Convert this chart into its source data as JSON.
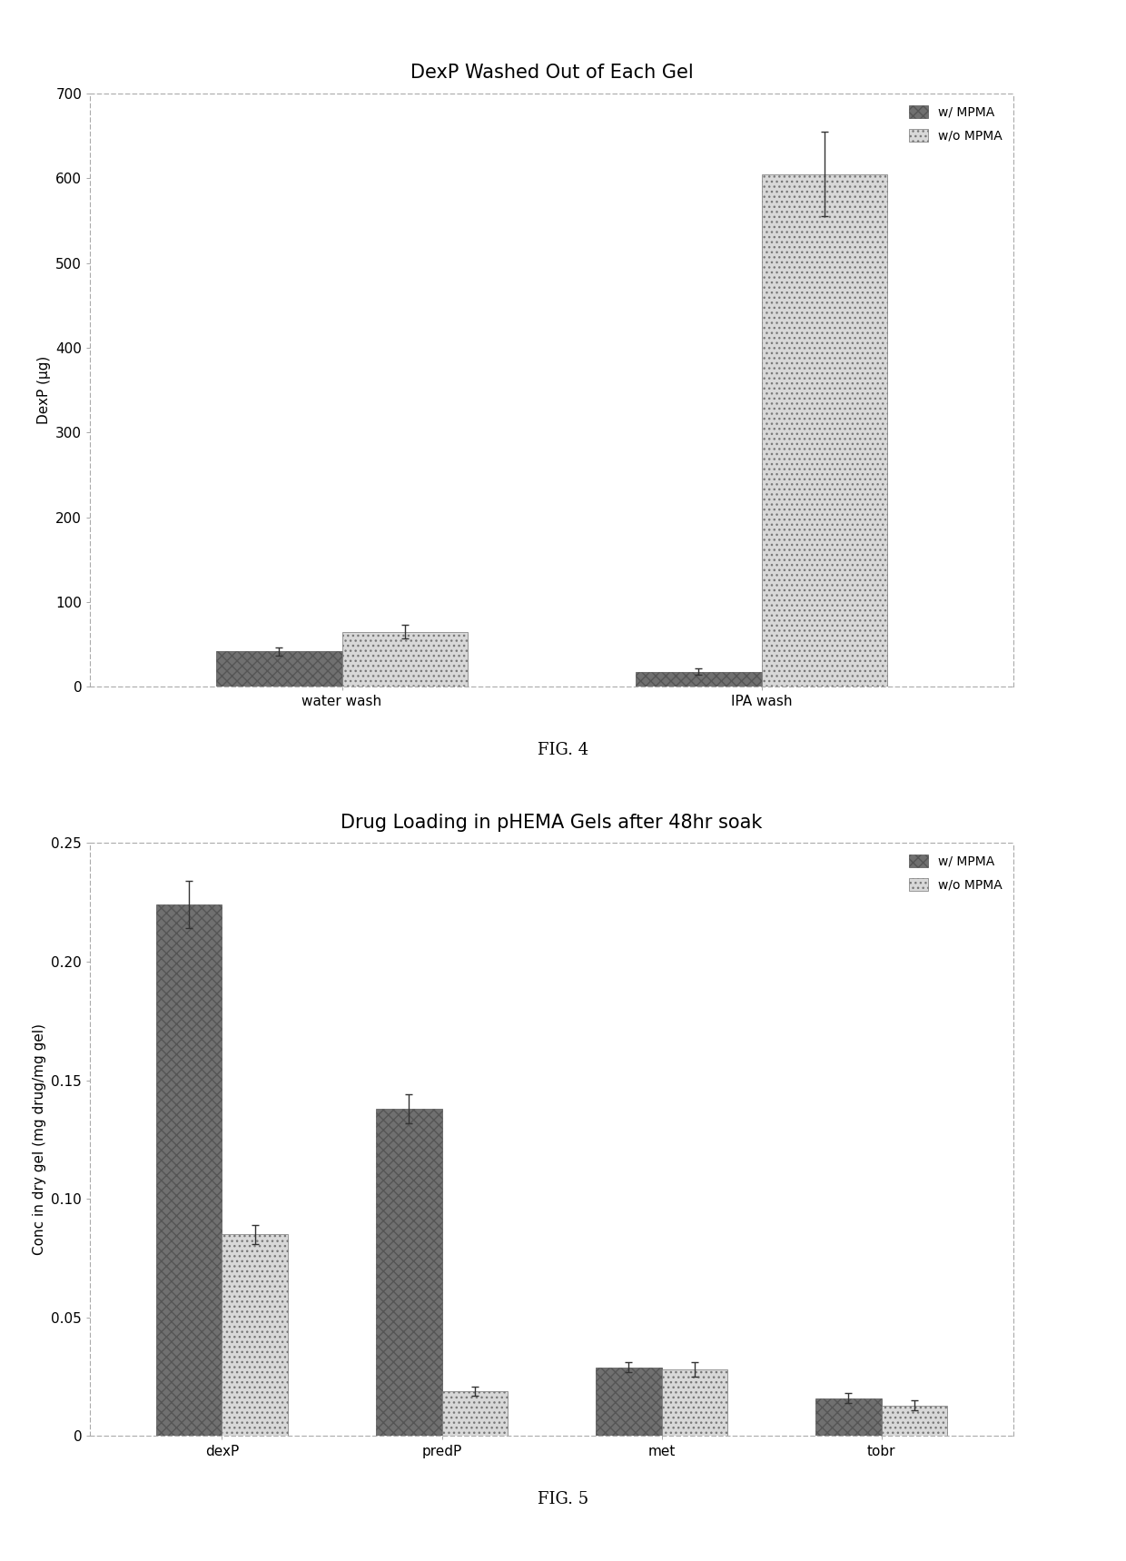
{
  "fig4": {
    "title": "DexP Washed Out of Each Gel",
    "ylabel": "DexP (μg)",
    "ylim": [
      0,
      700
    ],
    "yticks": [
      0,
      100,
      200,
      300,
      400,
      500,
      600,
      700
    ],
    "categories": [
      "water wash",
      "IPA wash"
    ],
    "with_mpma": [
      42,
      18
    ],
    "without_mpma": [
      65,
      605
    ],
    "with_mpma_err": [
      5,
      4
    ],
    "without_mpma_err": [
      8,
      50
    ],
    "color_with": "#707070",
    "color_without": "#d8d8d8",
    "hatch_with": "xxx",
    "hatch_without": "...",
    "legend_labels": [
      "w/ MPMA",
      "w/o MPMA"
    ],
    "bar_width": 0.3
  },
  "fig5": {
    "title": "Drug Loading in pHEMA Gels after 48hr soak",
    "ylabel": "Conc in dry gel (mg drug/mg gel)",
    "ylim": [
      0,
      0.25
    ],
    "yticks": [
      0,
      0.05,
      0.1,
      0.15,
      0.2,
      0.25
    ],
    "categories": [
      "dexP",
      "predP",
      "met",
      "tobr"
    ],
    "with_mpma": [
      0.224,
      0.138,
      0.029,
      0.016
    ],
    "without_mpma": [
      0.085,
      0.019,
      0.028,
      0.013
    ],
    "with_mpma_err": [
      0.01,
      0.006,
      0.002,
      0.002
    ],
    "without_mpma_err": [
      0.004,
      0.002,
      0.003,
      0.002
    ],
    "color_with": "#707070",
    "color_without": "#d8d8d8",
    "hatch_with": "xxx",
    "hatch_without": "...",
    "legend_labels": [
      "w/ MPMA",
      "w/o MPMA"
    ],
    "bar_width": 0.3
  },
  "background_color": "#ffffff",
  "plot_bg_color": "#ffffff",
  "border_color": "#aaaaaa",
  "fig_caption_fontsize": 13,
  "title_fontsize": 15,
  "tick_fontsize": 11,
  "label_fontsize": 11,
  "legend_fontsize": 10
}
